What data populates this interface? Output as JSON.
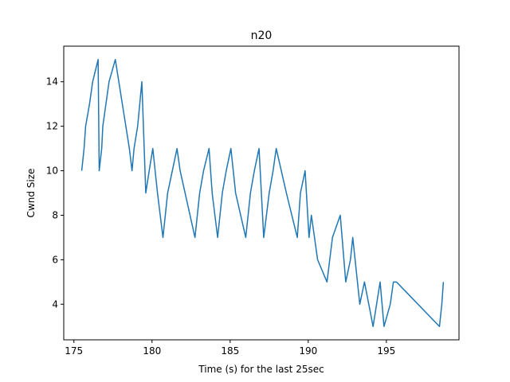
{
  "chart_data": {
    "type": "line",
    "title": "n20",
    "xlabel": "Time (s) for the last 25sec",
    "ylabel": "Cwnd Size",
    "xlim": [
      174.35,
      199.65
    ],
    "ylim": [
      2.4,
      15.6
    ],
    "xticks": [
      175,
      180,
      185,
      190,
      195
    ],
    "yticks": [
      4,
      6,
      8,
      10,
      12,
      14
    ],
    "grid": false,
    "line_color": "#1f77b4",
    "series": [
      {
        "x": [
          175.5,
          175.65,
          175.75,
          176.0,
          176.2,
          176.55,
          176.62,
          176.78,
          176.85,
          177.05,
          177.25,
          177.65,
          178.1,
          178.55,
          178.72,
          178.85,
          179.08,
          179.35,
          179.6,
          179.82,
          180.05,
          180.35,
          180.7,
          181.0,
          181.3,
          181.6,
          181.8,
          182.75,
          183.05,
          183.3,
          183.65,
          183.85,
          184.2,
          184.5,
          184.75,
          185.05,
          185.35,
          186.0,
          186.3,
          186.55,
          186.85,
          187.15,
          187.5,
          187.75,
          187.95,
          188.6,
          189.3,
          189.5,
          189.8,
          190.05,
          190.2,
          190.6,
          191.2,
          191.55,
          192.05,
          192.4,
          192.7,
          192.85,
          193.3,
          193.6,
          194.15,
          194.6,
          194.85,
          195.25,
          195.45,
          195.65,
          198.4,
          198.55,
          198.65
        ],
        "y": [
          10,
          11,
          12,
          13,
          14,
          15,
          10,
          11,
          12,
          13,
          14,
          15,
          13,
          11,
          10,
          11,
          12,
          14,
          9,
          10,
          11,
          9,
          7,
          9,
          10,
          11,
          10,
          7,
          9,
          10,
          11,
          9,
          7,
          9,
          10,
          11,
          9,
          7,
          9,
          10,
          11,
          7,
          9,
          10,
          11,
          9,
          7,
          9,
          10,
          7,
          8,
          6,
          5,
          7,
          8,
          5,
          6,
          7,
          4,
          5,
          3,
          5,
          3,
          4,
          5,
          5,
          3,
          4,
          5
        ]
      }
    ]
  }
}
